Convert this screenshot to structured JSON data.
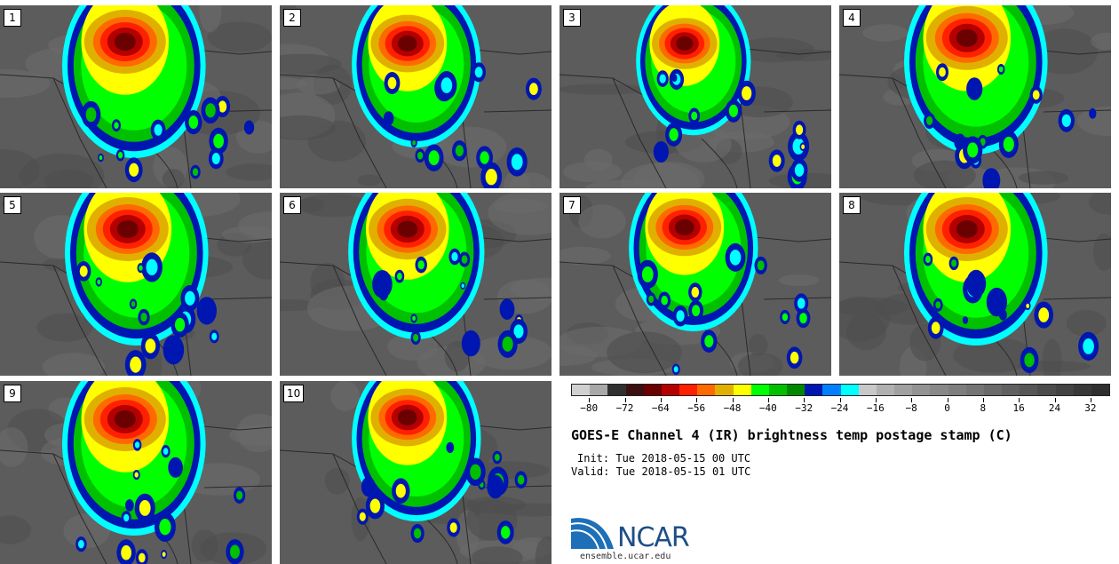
{
  "panels": [
    {
      "label": "1",
      "core_x": 0.46,
      "core_y": 0.16,
      "spread": 1.0
    },
    {
      "label": "2",
      "core_x": 0.47,
      "core_y": 0.17,
      "spread": 0.9
    },
    {
      "label": "3",
      "core_x": 0.46,
      "core_y": 0.17,
      "spread": 0.8
    },
    {
      "label": "4",
      "core_x": 0.47,
      "core_y": 0.14,
      "spread": 1.0
    },
    {
      "label": "5",
      "core_x": 0.47,
      "core_y": 0.16,
      "spread": 1.0
    },
    {
      "label": "6",
      "core_x": 0.47,
      "core_y": 0.16,
      "spread": 0.95
    },
    {
      "label": "7",
      "core_x": 0.46,
      "core_y": 0.15,
      "spread": 0.9
    },
    {
      "label": "8",
      "core_x": 0.47,
      "core_y": 0.16,
      "spread": 1.0
    },
    {
      "label": "9",
      "core_x": 0.46,
      "core_y": 0.17,
      "spread": 1.0
    },
    {
      "label": "10",
      "core_x": 0.47,
      "core_y": 0.16,
      "spread": 0.9
    }
  ],
  "colorbar": {
    "colors": [
      "#d0d0d0",
      "#a8a8a8",
      "#303030",
      "#3c1010",
      "#6b0000",
      "#b40000",
      "#ff2000",
      "#ff6a00",
      "#e0b000",
      "#ffff00",
      "#00ff00",
      "#00c000",
      "#008800",
      "#0016b0",
      "#0080ff",
      "#00ffff",
      "#c8c8c8",
      "#b0b0b0",
      "#a0a0a0",
      "#939393",
      "#888888",
      "#7e7e7e",
      "#747474",
      "#6a6a6a",
      "#606060",
      "#565656",
      "#4c4c4c",
      "#424242",
      "#383838",
      "#2e2e2e"
    ],
    "ticks": [
      "−80",
      "−72",
      "−64",
      "−56",
      "−48",
      "−40",
      "−32",
      "−24",
      "−16",
      "−8",
      "0",
      "8",
      "16",
      "24",
      "32"
    ],
    "min": -84,
    "max": 36
  },
  "title": "GOES-E Channel 4 (IR) brightness temp postage stamp (C)",
  "init": "Init: Tue 2018-05-15 00 UTC",
  "valid": "Valid: Tue 2018-05-15 01 UTC",
  "logo_text": "NCAR",
  "logo_url": "ensemble.ucar.edu"
}
